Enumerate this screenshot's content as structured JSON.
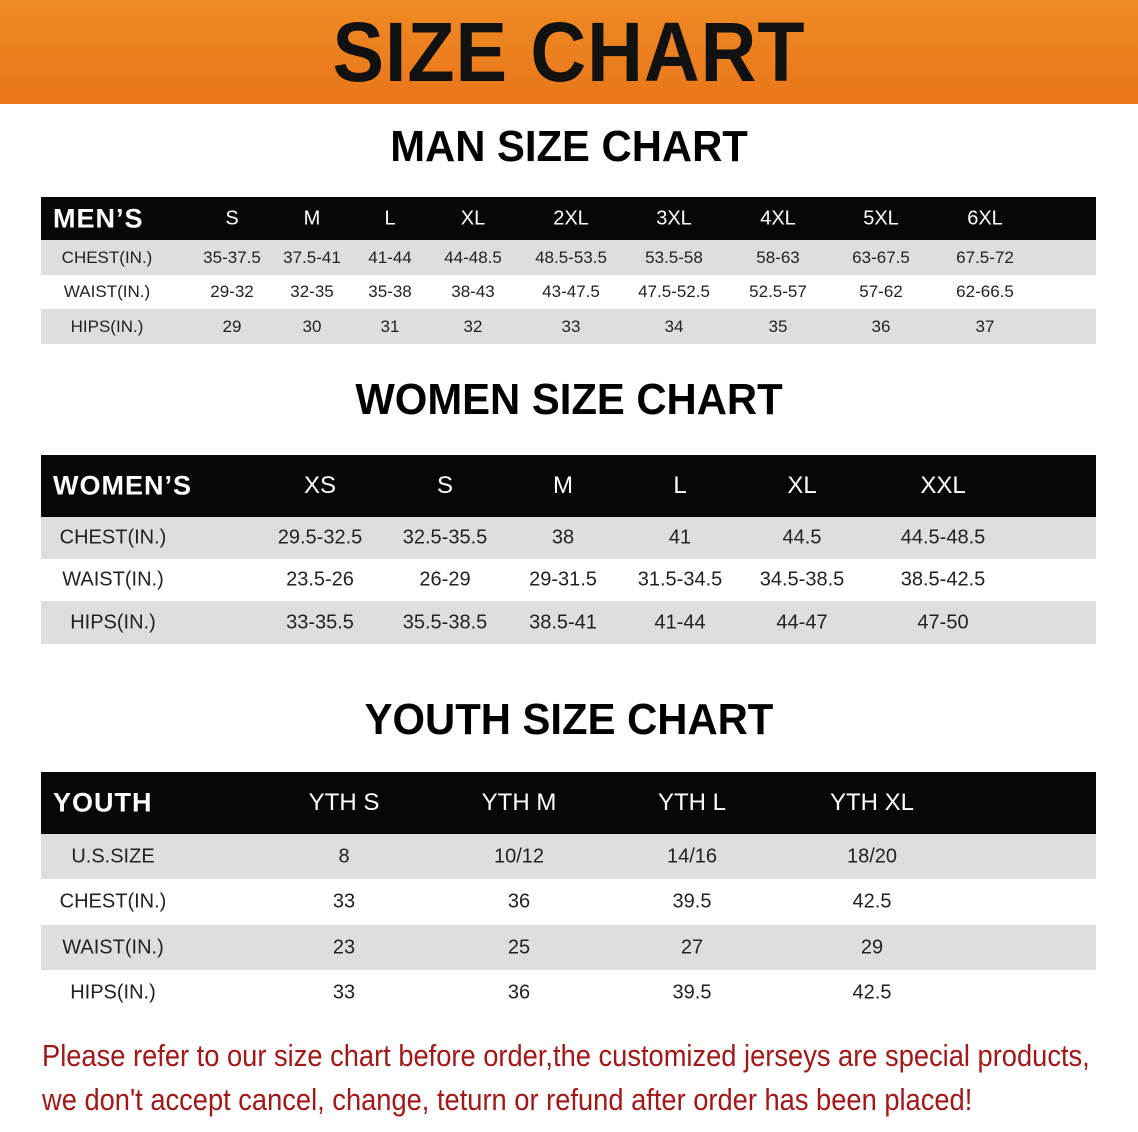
{
  "banner_title": "SIZE CHART",
  "men": {
    "title": "MAN SIZE CHART",
    "header_label": "MEN’S",
    "sizes": [
      "S",
      "M",
      "L",
      "XL",
      "2XL",
      "3XL",
      "4XL",
      "5XL",
      "6XL"
    ],
    "rows": [
      {
        "label": "CHEST(IN.)",
        "values": [
          "35-37.5",
          "37.5-41",
          "41-44",
          "44-48.5",
          "48.5-53.5",
          "53.5-58",
          "58-63",
          "63-67.5",
          "67.5-72"
        ]
      },
      {
        "label": "WAIST(IN.)",
        "values": [
          "29-32",
          "32-35",
          "35-38",
          "38-43",
          "43-47.5",
          "47.5-52.5",
          "52.5-57",
          "57-62",
          "62-66.5"
        ]
      },
      {
        "label": "HIPS(IN.)",
        "values": [
          "29",
          "30",
          "31",
          "32",
          "33",
          "34",
          "35",
          "36",
          "37"
        ]
      }
    ]
  },
  "women": {
    "title": "WOMEN SIZE CHART",
    "header_label": "WOMEN’S",
    "sizes": [
      "XS",
      "S",
      "M",
      "L",
      "XL",
      "XXL"
    ],
    "rows": [
      {
        "label": "CHEST(IN.)",
        "values": [
          "29.5-32.5",
          "32.5-35.5",
          "38",
          "41",
          "44.5",
          "44.5-48.5"
        ]
      },
      {
        "label": "WAIST(IN.)",
        "values": [
          "23.5-26",
          "26-29",
          "29-31.5",
          "31.5-34.5",
          "34.5-38.5",
          "38.5-42.5"
        ]
      },
      {
        "label": "HIPS(IN.)",
        "values": [
          "33-35.5",
          "35.5-38.5",
          "38.5-41",
          "41-44",
          "44-47",
          "47-50"
        ]
      }
    ]
  },
  "youth": {
    "title": "YOUTH SIZE CHART",
    "header_label": "YOUTH",
    "sizes": [
      "YTH S",
      "YTH M",
      "YTH L",
      "YTH XL"
    ],
    "rows": [
      {
        "label": "U.S.SIZE",
        "values": [
          "8",
          "10/12",
          "14/16",
          "18/20"
        ]
      },
      {
        "label": "CHEST(IN.)",
        "values": [
          "33",
          "36",
          "39.5",
          "42.5"
        ]
      },
      {
        "label": "WAIST(IN.)",
        "values": [
          "23",
          "25",
          "27",
          "29"
        ]
      },
      {
        "label": "HIPS(IN.)",
        "values": [
          "33",
          "36",
          "39.5",
          "42.5"
        ]
      }
    ]
  },
  "notice": {
    "line1": "Please refer to our size chart before order,the customized jerseys are special products,",
    "line2": "we don't accept cancel, change, teturn or refund after order has been placed!"
  },
  "colors": {
    "banner": "#ea7d1e",
    "header_bg": "#070707",
    "row_gray": "#dedede",
    "notice": "#a01818"
  }
}
